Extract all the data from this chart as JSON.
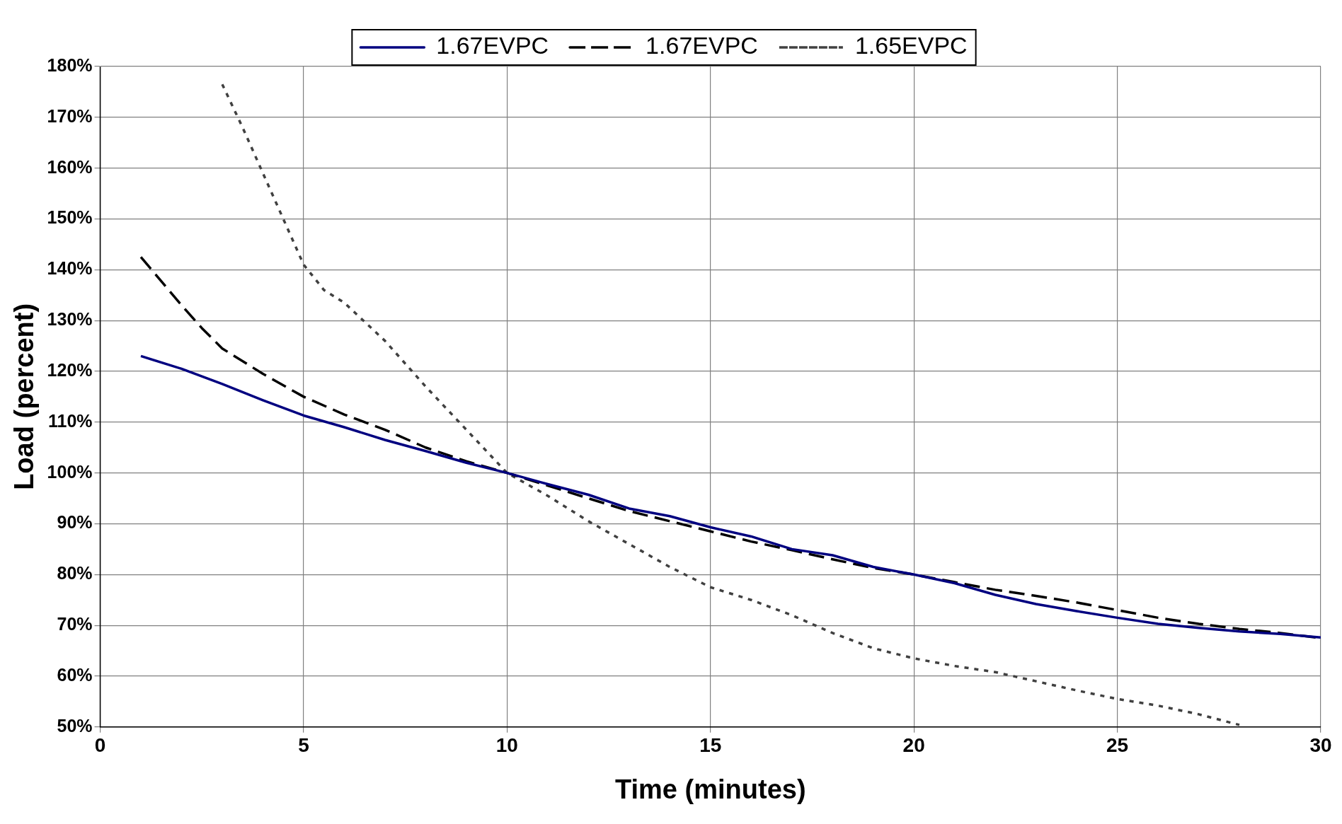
{
  "chart_data": {
    "type": "line",
    "xlabel": "Time (minutes)",
    "ylabel": "Load (percent)",
    "xlim": [
      0,
      30
    ],
    "xticks": [
      0,
      5,
      10,
      15,
      20,
      25,
      30
    ],
    "ylim": [
      50,
      180
    ],
    "yticks": [
      {
        "value": 50,
        "label": "50%"
      },
      {
        "value": 60,
        "label": "60%"
      },
      {
        "value": 70,
        "label": "70%"
      },
      {
        "value": 80,
        "label": "80%"
      },
      {
        "value": 90,
        "label": "90%"
      },
      {
        "value": 100,
        "label": "100%"
      },
      {
        "value": 110,
        "label": "110%"
      },
      {
        "value": 120,
        "label": "120%"
      },
      {
        "value": 130,
        "label": "130%"
      },
      {
        "value": 140,
        "label": "140%"
      },
      {
        "value": 150,
        "label": "150%"
      },
      {
        "value": 160,
        "label": "160%"
      },
      {
        "value": 170,
        "label": "170%"
      },
      {
        "value": 180,
        "label": "180%"
      }
    ],
    "grid": true,
    "legend": "top",
    "marker": "none",
    "series": [
      {
        "name": "1.67EVPC",
        "color": "#000080",
        "line_style": "solid",
        "x": [
          1,
          2,
          3,
          4,
          5,
          6,
          7,
          8,
          9,
          10,
          11,
          12,
          13,
          14,
          15,
          16,
          17,
          18,
          19,
          20,
          21,
          22,
          23,
          24,
          25,
          26,
          27,
          28,
          29,
          30
        ],
        "values": [
          123,
          120.5,
          117.5,
          114.3,
          111.3,
          109,
          106.5,
          104.3,
          102,
          100,
          97.8,
          95.7,
          93,
          91.5,
          89.3,
          87.5,
          85,
          83.8,
          81.5,
          80,
          78.3,
          76,
          74.2,
          72.8,
          71.5,
          70.3,
          69.5,
          68.8,
          68.3,
          67.6
        ]
      },
      {
        "name": "1.67EVPC",
        "color": "#000000",
        "line_style": "dashed",
        "x": [
          1,
          2,
          2.5,
          3,
          4,
          5,
          6,
          7,
          8,
          9,
          10,
          11,
          12,
          13,
          14,
          15,
          16,
          17,
          18,
          19,
          20,
          21,
          22,
          23,
          24,
          25,
          26,
          27,
          28,
          29,
          30
        ],
        "values": [
          142.5,
          133,
          128.5,
          124.5,
          119.5,
          115,
          111.5,
          108.5,
          105,
          102.3,
          100,
          97.5,
          95,
          92.5,
          90.5,
          88.5,
          86.5,
          84.8,
          83,
          81.3,
          80,
          78.5,
          77,
          75.8,
          74.5,
          73,
          71.5,
          70.3,
          69.3,
          68.5,
          67.5
        ]
      },
      {
        "name": "1.65EVPC",
        "color": "#404040",
        "line_style": "dotted",
        "x": [
          3,
          3.5,
          4,
          4.5,
          5,
          5.5,
          6,
          7,
          8,
          9,
          10,
          11,
          12,
          13,
          14,
          15,
          16,
          17,
          18,
          19,
          20,
          21,
          22,
          23,
          24,
          25,
          26,
          27,
          28
        ],
        "values": [
          176.5,
          168,
          159,
          150,
          141,
          136,
          133.5,
          126,
          117,
          108.5,
          100,
          95.5,
          90.5,
          86,
          81.5,
          77.5,
          75,
          72,
          68.5,
          65.5,
          63.5,
          62,
          60.8,
          59,
          57.2,
          55.5,
          54.2,
          52.5,
          50.4
        ]
      }
    ]
  }
}
